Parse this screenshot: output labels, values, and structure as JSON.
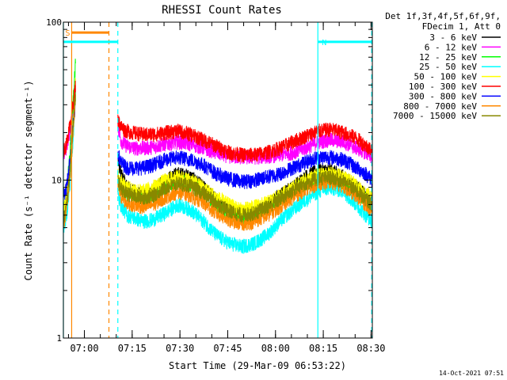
{
  "chart_data": {
    "type": "line",
    "title": "RHESSI Count Rates",
    "xlabel": "Start Time (29-Mar-09 06:53:22)",
    "ylabel": "Count Rate (s⁻¹ detector segment⁻¹)",
    "y_scale": "log",
    "ylim": [
      1,
      100
    ],
    "y_ticks": [
      "1",
      "10",
      "100"
    ],
    "x_range_minutes": [
      0,
      97
    ],
    "x_ticks": [
      {
        "label": "07:00",
        "minute": 6.6
      },
      {
        "label": "07:15",
        "minute": 21.6
      },
      {
        "label": "07:30",
        "minute": 36.6
      },
      {
        "label": "07:45",
        "minute": 51.6
      },
      {
        "label": "08:00",
        "minute": 66.6
      },
      {
        "label": "08:15",
        "minute": 81.6
      },
      {
        "label": "08:30",
        "minute": 96.6
      }
    ],
    "legend": {
      "placement": "right",
      "header": [
        "Det 1f,3f,4f,5f,6f,9f,",
        "FDecim 1, Att 0"
      ]
    },
    "annotations": {
      "markers": [
        {
          "minute": 0.0,
          "color": "#00ffff",
          "style": "solid"
        },
        {
          "minute": 2.6,
          "color": "#ff8800",
          "style": "solid"
        },
        {
          "minute": 14.3,
          "color": "#ff8800",
          "style": "dashed"
        },
        {
          "minute": 17.1,
          "color": "#00ffff",
          "style": "dashed"
        },
        {
          "minute": 79.9,
          "color": "#00ffff",
          "style": "solid"
        },
        {
          "minute": 96.8,
          "color": "#00ffff",
          "style": "dashed"
        }
      ],
      "bars": [
        {
          "label": "S",
          "color": "#ff8800",
          "from_min": 2.6,
          "to_min": 14.3,
          "y_value": 86
        },
        {
          "label": "",
          "color": "#00ffff",
          "from_min": 0.0,
          "to_min": 17.1,
          "y_value": 75
        },
        {
          "label": "N",
          "color": "#00ffff",
          "from_min": 79.9,
          "to_min": 96.8,
          "y_value": 75
        }
      ]
    },
    "gap_minutes": [
      3.8,
      17.1
    ],
    "series_x": [
      0,
      1,
      2,
      3,
      3.8,
      17.1,
      18,
      19,
      20,
      22,
      25,
      28,
      32,
      36,
      40,
      44,
      48,
      52,
      56,
      60,
      64,
      68,
      72,
      76,
      80,
      84,
      88,
      92,
      95,
      97
    ],
    "series": [
      {
        "name": "3 - 6 keV",
        "color": "#000000",
        "values": [
          6,
          8,
          12,
          22,
          40,
          14,
          11,
          10,
          9,
          8.5,
          8,
          8.5,
          10,
          11,
          10.5,
          9,
          7.5,
          6.5,
          6,
          6.2,
          7,
          8,
          9,
          10.5,
          11.5,
          11.5,
          10.5,
          9,
          8,
          7.5
        ]
      },
      {
        "name": "6 - 12 keV",
        "color": "#ff00ff",
        "values": [
          14,
          16,
          20,
          28,
          38,
          22,
          18,
          17,
          16.5,
          16,
          16,
          16.2,
          17,
          17.5,
          17,
          16,
          15,
          14.2,
          14,
          14,
          14.2,
          14.5,
          15,
          16,
          17.5,
          18,
          17.5,
          16,
          15,
          14
        ]
      },
      {
        "name": "12 - 25 keV",
        "color": "#00ff00",
        "values": [
          6,
          8,
          14,
          30,
          55,
          10,
          9,
          8.5,
          8.2,
          8,
          7.5,
          8,
          9,
          10,
          9.5,
          8.5,
          7,
          6.2,
          5.8,
          6,
          6.6,
          7.5,
          8.5,
          9.5,
          10,
          10,
          9.5,
          8.5,
          7.5,
          7
        ]
      },
      {
        "name": "25 - 50 keV",
        "color": "#00ffff",
        "values": [
          5,
          6,
          9,
          18,
          35,
          8,
          7,
          6.5,
          6,
          5.8,
          5.5,
          5.6,
          6.2,
          7,
          6.5,
          5.5,
          4.5,
          4,
          3.8,
          4,
          4.5,
          5.5,
          6.5,
          7.5,
          8.5,
          9,
          8.5,
          7,
          6,
          5.5
        ]
      },
      {
        "name": "50 - 100 keV",
        "color": "#ffff00",
        "values": [
          6,
          8,
          12,
          24,
          40,
          11,
          10,
          9.5,
          9,
          8.8,
          8.5,
          9,
          10,
          10.5,
          10,
          9,
          7.8,
          7,
          6.5,
          6.8,
          7.2,
          8,
          9,
          10,
          10.8,
          11,
          10.5,
          9.2,
          8.2,
          7.8
        ]
      },
      {
        "name": "100 - 300 keV",
        "color": "#ff0000",
        "values": [
          15,
          17,
          22,
          30,
          40,
          24,
          22,
          21,
          20.5,
          20,
          19.5,
          19.5,
          20,
          20.5,
          19.5,
          18,
          16.5,
          15,
          14.5,
          14.5,
          15,
          16,
          17.5,
          19,
          20.5,
          21,
          20,
          18.5,
          16.5,
          15.5
        ]
      },
      {
        "name": "300 - 800 keV",
        "color": "#0000ff",
        "values": [
          8,
          9,
          13,
          22,
          30,
          15,
          13,
          12.5,
          12,
          12,
          12,
          12.5,
          13.5,
          14,
          13.5,
          12.5,
          11,
          10.2,
          9.8,
          10,
          10.5,
          11,
          12,
          13,
          14,
          14,
          13.5,
          12,
          11,
          10
        ]
      },
      {
        "name": "800 - 7000 keV",
        "color": "#ff8800",
        "values": [
          5,
          6.5,
          10,
          20,
          32,
          9,
          8,
          7.5,
          7.2,
          7,
          6.8,
          7,
          7.8,
          8.5,
          8,
          7.2,
          6.2,
          5.6,
          5.3,
          5.5,
          6,
          6.8,
          7.8,
          8.8,
          9.5,
          9.8,
          9.2,
          8,
          7,
          6.5
        ]
      },
      {
        "name": "7000 - 15000 keV",
        "color": "#888800",
        "values": [
          5.5,
          7,
          11,
          22,
          35,
          10,
          9,
          8.5,
          8.2,
          8,
          7.8,
          8,
          9,
          9.6,
          9.2,
          8.3,
          7.2,
          6.4,
          6,
          6.2,
          6.8,
          7.6,
          8.6,
          9.6,
          10.3,
          10.4,
          9.8,
          8.6,
          7.6,
          7
        ]
      }
    ],
    "footer_stamp": "14-Oct-2021 07:51"
  }
}
